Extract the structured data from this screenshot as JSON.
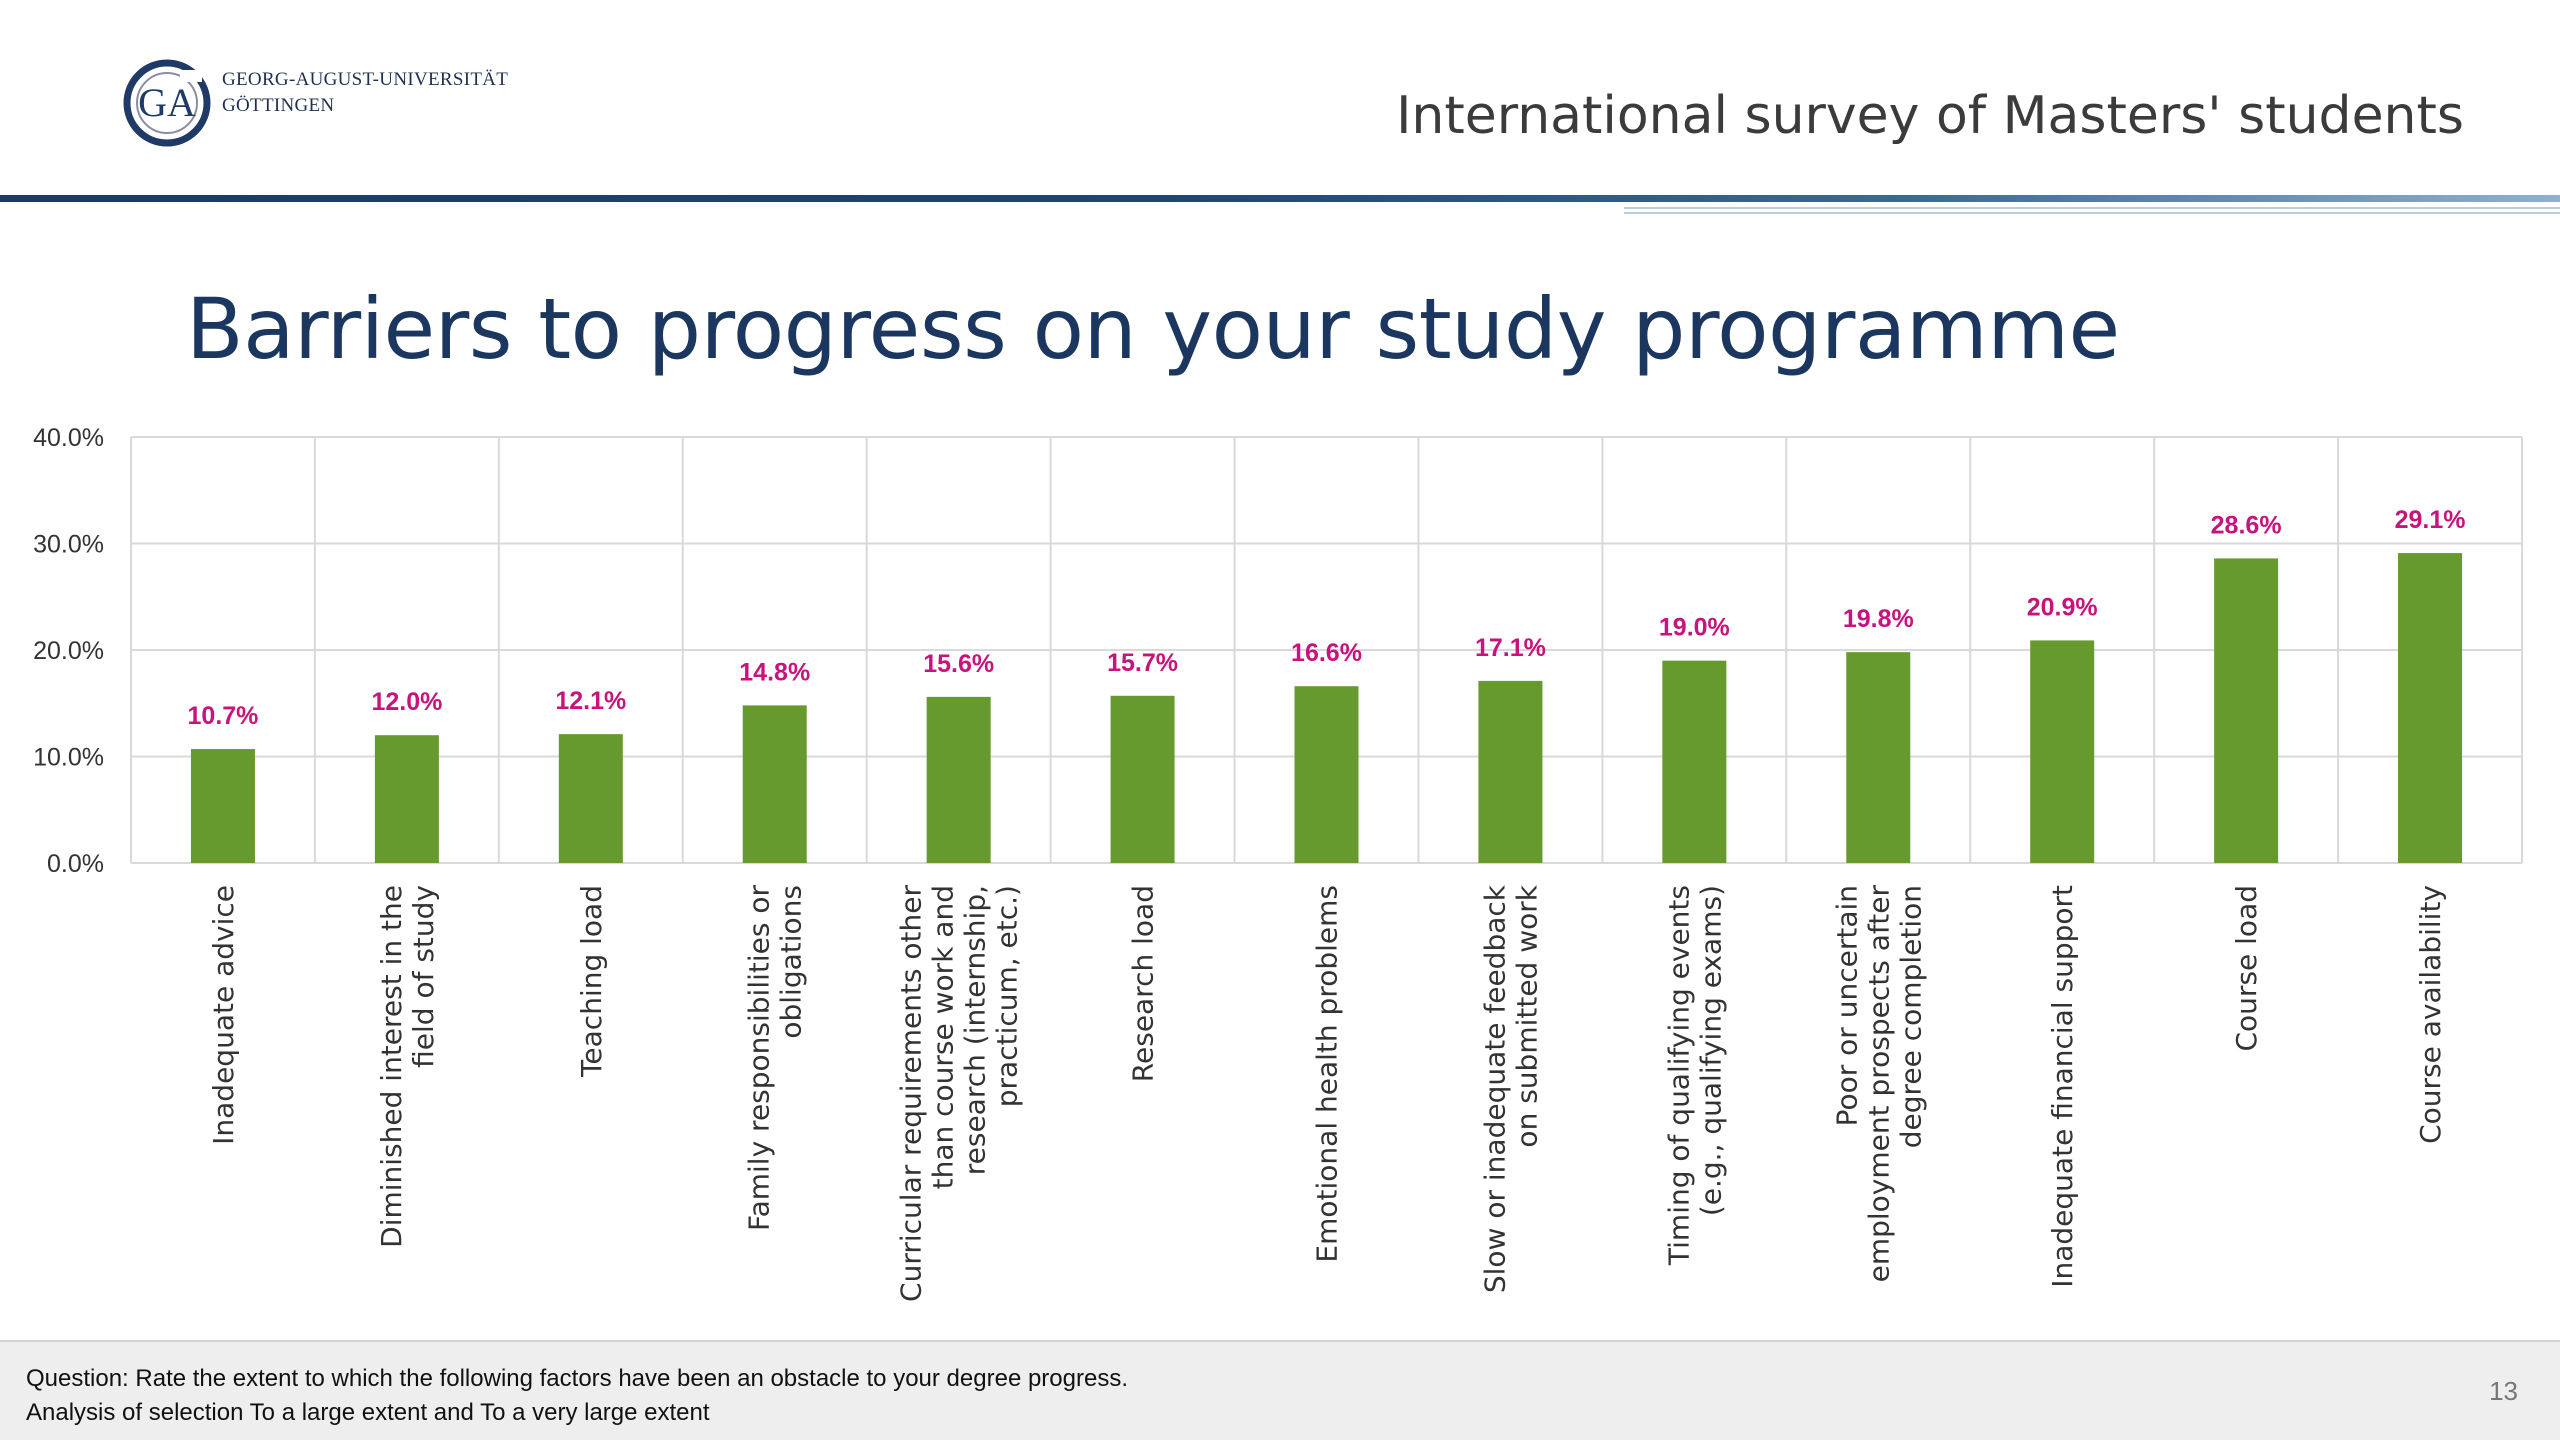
{
  "header": {
    "university_line1": "GEORG-AUGUST-UNIVERSITÄT",
    "university_line2": "GÖTTINGEN",
    "survey_title": "International survey of Masters' students"
  },
  "slide": {
    "title": "Barriers to progress on your study programme",
    "page_number": "13"
  },
  "footer": {
    "question": "Question: Rate the extent to which the following factors have been an obstacle to your degree progress.",
    "analysis": "Analysis of selection To a large extent and To a very large extent"
  },
  "colors": {
    "bar": "#669a2e",
    "data_label": "#c8127e",
    "title": "#1b3760",
    "grid": "#d9d9d9"
  },
  "chart_data": {
    "type": "bar",
    "title": "",
    "xlabel": "",
    "ylabel": "",
    "ylim": [
      0,
      40
    ],
    "yticks": [
      "0.0%",
      "10.0%",
      "20.0%",
      "30.0%",
      "40.0%"
    ],
    "grid": true,
    "legend": "none",
    "categories": [
      [
        "Inadequate advice"
      ],
      [
        "Diminished interest in the",
        "field of study"
      ],
      [
        "Teaching load"
      ],
      [
        "Family responsibilities or",
        "obligations"
      ],
      [
        "Curricular requirements other",
        "than course work and",
        "research (internship,",
        "practicum, etc.)"
      ],
      [
        "Research load"
      ],
      [
        "Emotional health problems"
      ],
      [
        "Slow or inadequate feedback",
        "on submitted work"
      ],
      [
        "Timing of qualifying events",
        "(e.g., qualifying exams)"
      ],
      [
        "Poor or uncertain",
        "employment prospects after",
        "degree completion"
      ],
      [
        "Inadequate financial support"
      ],
      [
        "Course load"
      ],
      [
        "Course availability"
      ]
    ],
    "values": [
      10.7,
      12.0,
      12.1,
      14.8,
      15.6,
      15.7,
      16.6,
      17.1,
      19.0,
      19.8,
      20.9,
      28.6,
      29.1
    ],
    "value_labels": [
      "10.7%",
      "12.0%",
      "12.1%",
      "14.8%",
      "15.6%",
      "15.7%",
      "16.6%",
      "17.1%",
      "19.0%",
      "19.8%",
      "20.9%",
      "28.6%",
      "29.1%"
    ]
  }
}
